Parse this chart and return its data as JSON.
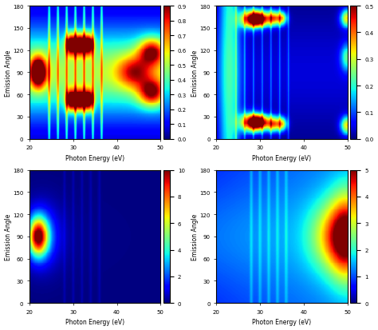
{
  "xlim": [
    20,
    50
  ],
  "ylim": [
    0,
    180
  ],
  "xlabel": "Photon Energy (eV)",
  "ylabel": "Emission Angle",
  "colorbar_ticks_panel1": [
    0,
    0.1,
    0.2,
    0.3,
    0.4,
    0.5,
    0.6,
    0.7,
    0.8,
    0.9
  ],
  "colorbar_max_panel1": 0.9,
  "colorbar_ticks_panel2": [
    0,
    0.1,
    0.2,
    0.3,
    0.4,
    0.5
  ],
  "colorbar_max_panel2": 0.5,
  "colorbar_ticks_panel3": [
    0,
    2,
    4,
    6,
    8,
    10
  ],
  "colorbar_max_panel3": 10,
  "colorbar_ticks_panel4": [
    0,
    1,
    2,
    3,
    4,
    5
  ],
  "colorbar_max_panel4": 5,
  "xticks": [
    20,
    30,
    40,
    50
  ],
  "yticks": [
    0,
    30,
    60,
    90,
    120,
    150,
    180
  ],
  "background_color": "#ffffff"
}
